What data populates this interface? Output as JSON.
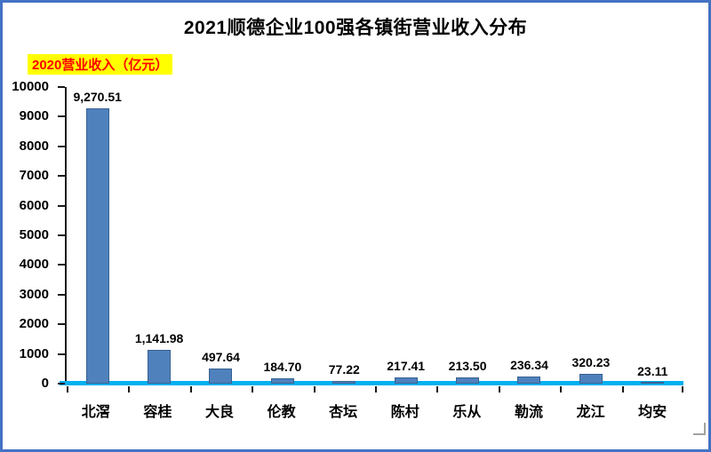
{
  "title": "2021顺德企业100强各镇街营业收入分布",
  "unit_label": "2020营业收入（亿元）",
  "colors": {
    "frame_border": "#4472C4",
    "bar": "#4F81BD",
    "bar_border": "#38618F",
    "axis_x": "#00B0F0",
    "unit_bg": "#FFFF00",
    "unit_text": "#FF0000"
  },
  "chart_data": {
    "type": "bar",
    "title": "2021顺德企业100强各镇街营业收入分布",
    "ylabel": "2020营业收入（亿元）",
    "categories": [
      "北滘",
      "容桂",
      "大良",
      "伦教",
      "杏坛",
      "陈村",
      "乐从",
      "勒流",
      "龙江",
      "均安"
    ],
    "values": [
      9270.51,
      1141.98,
      497.64,
      184.7,
      77.22,
      217.41,
      213.5,
      236.34,
      320.23,
      23.11
    ],
    "data_labels": [
      "9,270.51",
      "1,141.98",
      "497.64",
      "184.70",
      "77.22",
      "217.41",
      "213.50",
      "236.34",
      "320.23",
      "23.11"
    ],
    "ylim": [
      0,
      10000
    ],
    "ytick_step": 1000,
    "ytick_labels": [
      "0",
      "1000",
      "2000",
      "3000",
      "4000",
      "5000",
      "6000",
      "7000",
      "8000",
      "9000",
      "10000"
    ],
    "grid": false,
    "legend": "none"
  }
}
